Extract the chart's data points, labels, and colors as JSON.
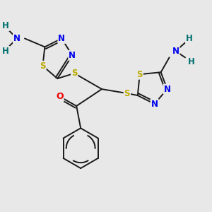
{
  "bg_color": "#e8e8e8",
  "atom_colors": {
    "C": "#1a1a1a",
    "N": "#0000ee",
    "S": "#bbaa00",
    "O": "#ee0000",
    "H": "#007070"
  },
  "lw": 1.4,
  "fs": 8.5
}
